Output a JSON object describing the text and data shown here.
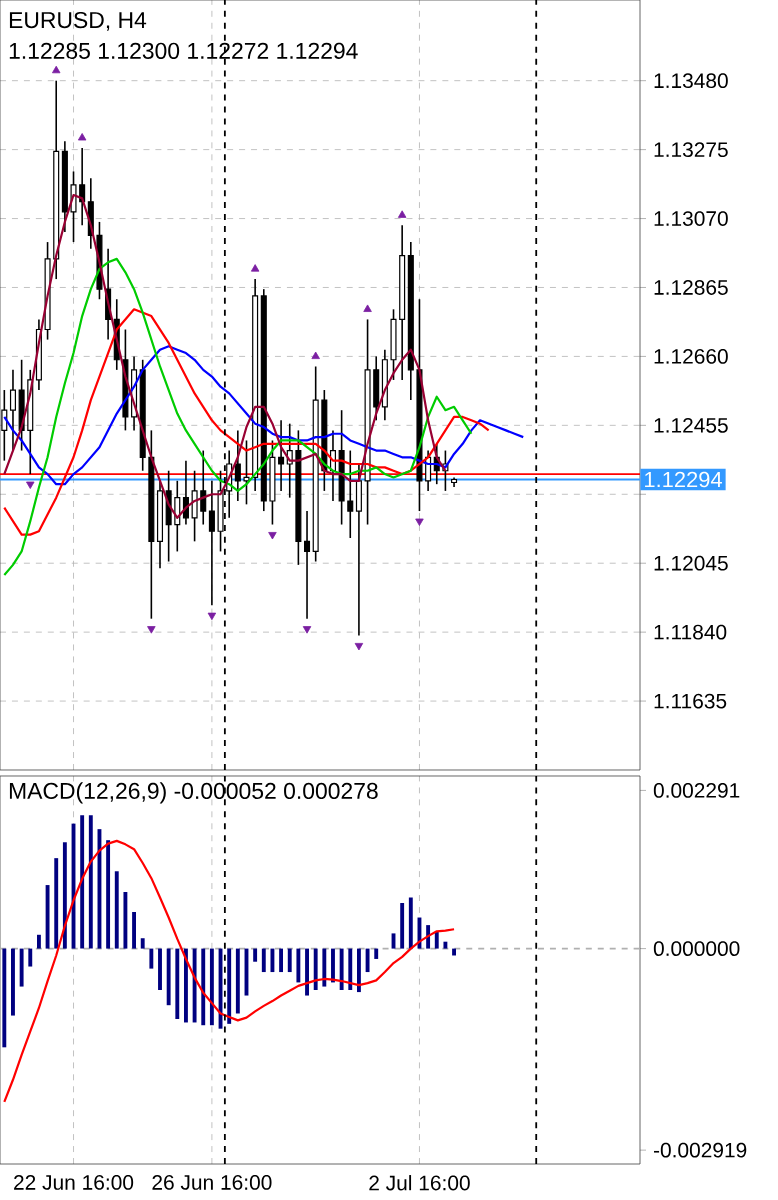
{
  "chart_data": [
    {
      "type": "candlestick",
      "title": "EURUSD, H4",
      "subtitle": "1.12285 1.12300 1.12272 1.12294",
      "categories": [
        null,
        null,
        null,
        null,
        null,
        null,
        null,
        null,
        null,
        null,
        null,
        null,
        null,
        null,
        null,
        null,
        null,
        null,
        null,
        null,
        null,
        null,
        null,
        null,
        null,
        null,
        null,
        null,
        null,
        null,
        null,
        null,
        null,
        null,
        null,
        null,
        null,
        null,
        null,
        null,
        null,
        null,
        null,
        null,
        null,
        null,
        null,
        null,
        null,
        null,
        null,
        null,
        null,
        null,
        null,
        null,
        null,
        null,
        null,
        null,
        null,
        null,
        null,
        null,
        null,
        null,
        null,
        null,
        null,
        null,
        null,
        null,
        null,
        null
      ],
      "ohlc": [
        [
          1.1244,
          1.1256,
          1.1235,
          1.125
        ],
        [
          1.125,
          1.1262,
          1.1238,
          1.1256
        ],
        [
          1.1256,
          1.1265,
          1.1238,
          1.1244
        ],
        [
          1.1244,
          1.1262,
          1.1231,
          1.1259
        ],
        [
          1.1259,
          1.1277,
          1.1256,
          1.1274
        ],
        [
          1.1274,
          1.13,
          1.1271,
          1.1295
        ],
        [
          1.1295,
          1.1348,
          1.1289,
          1.1327
        ],
        [
          1.1327,
          1.133,
          1.1303,
          1.1309
        ],
        [
          1.1309,
          1.1321,
          1.13,
          1.1317
        ],
        [
          1.1317,
          1.1328,
          1.1305,
          1.1312
        ],
        [
          1.1312,
          1.1319,
          1.1298,
          1.1302
        ],
        [
          1.1302,
          1.1306,
          1.1283,
          1.1286
        ],
        [
          1.1286,
          1.1298,
          1.1271,
          1.1277
        ],
        [
          1.1277,
          1.1283,
          1.1262,
          1.1265
        ],
        [
          1.1265,
          1.1274,
          1.1244,
          1.1248
        ],
        [
          1.1248,
          1.1266,
          1.1244,
          1.1262
        ],
        [
          1.1262,
          1.1265,
          1.1232,
          1.1236
        ],
        [
          1.1236,
          1.1244,
          1.1188,
          1.1211
        ],
        [
          1.1211,
          1.1229,
          1.1203,
          1.1226
        ],
        [
          1.1226,
          1.1232,
          1.1205,
          1.1216
        ],
        [
          1.1216,
          1.1229,
          1.1208,
          1.1224
        ],
        [
          1.1224,
          1.1235,
          1.1216,
          1.1218
        ],
        [
          1.1218,
          1.1232,
          1.1211,
          1.1226
        ],
        [
          1.1226,
          1.1238,
          1.1216,
          1.122
        ],
        [
          1.122,
          1.1229,
          1.1192,
          1.1214
        ],
        [
          1.1214,
          1.1232,
          1.1208,
          1.1226
        ],
        [
          1.1226,
          1.1238,
          1.1218,
          1.1234
        ],
        [
          1.1234,
          1.1244,
          1.1223,
          1.1229
        ],
        [
          1.1229,
          1.1241,
          1.1222,
          1.123
        ],
        [
          1.123,
          1.1289,
          1.1226,
          1.1284
        ],
        [
          1.1284,
          1.1286,
          1.122,
          1.1223
        ],
        [
          1.1223,
          1.1241,
          1.1216,
          1.1236
        ],
        [
          1.1236,
          1.1247,
          1.1226,
          1.1234
        ],
        [
          1.1234,
          1.1246,
          1.1224,
          1.1238
        ],
        [
          1.1238,
          1.1244,
          1.1204,
          1.1211
        ],
        [
          1.1211,
          1.122,
          1.1188,
          1.1208
        ],
        [
          1.1208,
          1.1263,
          1.1205,
          1.1253
        ],
        [
          1.1253,
          1.1256,
          1.1226,
          1.1232
        ],
        [
          1.1232,
          1.1244,
          1.1223,
          1.1238
        ],
        [
          1.1238,
          1.125,
          1.1216,
          1.1223
        ],
        [
          1.1223,
          1.1238,
          1.1212,
          1.122
        ],
        [
          1.122,
          1.1234,
          1.1183,
          1.1229
        ],
        [
          1.1229,
          1.1277,
          1.1216,
          1.1262
        ],
        [
          1.1262,
          1.1266,
          1.1247,
          1.1251
        ],
        [
          1.1251,
          1.1268,
          1.1247,
          1.1265
        ],
        [
          1.1265,
          1.128,
          1.1259,
          1.1277
        ],
        [
          1.1277,
          1.1305,
          1.1259,
          1.1296
        ],
        [
          1.1296,
          1.13,
          1.1253,
          1.1262
        ],
        [
          1.1262,
          1.1283,
          1.122,
          1.1229
        ],
        [
          1.1229,
          1.1238,
          1.1226,
          1.1236
        ],
        [
          1.1236,
          1.124,
          1.1228,
          1.1232
        ],
        [
          1.1232,
          1.1238,
          1.1226,
          1.1234
        ],
        [
          1.12285,
          1.123,
          1.12272,
          1.12294
        ],
        null,
        null,
        null,
        null,
        null,
        null,
        null,
        null,
        null,
        null,
        null,
        null,
        null,
        null,
        null,
        null,
        null,
        null,
        null,
        null,
        null
      ],
      "series": [
        {
          "type": "line",
          "color": "#0000ff",
          "values": [
            1.1248,
            1.1244,
            1.1241,
            1.1237,
            1.1233,
            1.1231,
            1.1228,
            1.1228,
            1.1231,
            1.1233,
            1.1236,
            1.1239,
            1.1244,
            1.1249,
            1.1253,
            1.1257,
            1.1262,
            1.1265,
            1.1268,
            1.1269,
            1.1268,
            1.1267,
            1.1265,
            1.1262,
            1.126,
            1.1257,
            1.1255,
            1.1252,
            1.1249,
            1.1246,
            1.1245,
            1.1243,
            1.1242,
            1.1242,
            1.1241,
            1.1241,
            1.1242,
            1.1242,
            1.1243,
            1.1243,
            1.1241,
            1.124,
            1.1239,
            1.1238,
            1.1238,
            1.1237,
            1.1236,
            1.1236,
            1.1235,
            1.1234,
            1.1234,
            1.1233,
            1.1237,
            1.124,
            1.1244,
            1.1247,
            1.1246,
            1.1245,
            1.1244,
            1.1243,
            1.1242,
            null,
            null,
            null,
            null,
            null,
            null,
            null,
            null,
            null,
            null,
            null,
            null,
            null
          ]
        },
        {
          "type": "line",
          "color": "#ff0000",
          "values": [
            1.1221,
            1.1217,
            1.1213,
            1.1213,
            1.1214,
            1.1219,
            1.1224,
            1.123,
            1.1236,
            1.1244,
            1.1253,
            1.126,
            1.1267,
            1.1274,
            1.1277,
            1.128,
            1.1279,
            1.1278,
            1.1274,
            1.127,
            1.1265,
            1.126,
            1.1255,
            1.1251,
            1.1247,
            1.1244,
            1.1242,
            1.124,
            1.1238,
            1.1239,
            1.124,
            1.124,
            1.124,
            1.124,
            1.124,
            1.124,
            1.124,
            1.1238,
            1.1235,
            1.1235,
            1.1234,
            1.1234,
            1.1234,
            1.1233,
            1.1233,
            1.1232,
            1.1231,
            1.1232,
            1.1234,
            1.1236,
            1.124,
            1.1244,
            1.1248,
            1.1248,
            1.1247,
            1.1246,
            1.1244,
            null,
            null,
            null,
            null,
            null,
            null,
            null,
            null,
            null,
            null,
            null,
            null,
            null,
            null,
            null,
            null,
            null
          ]
        },
        {
          "type": "line",
          "color": "#00cc00",
          "values": [
            1.1201,
            1.1204,
            1.1208,
            1.1217,
            1.1227,
            1.1236,
            1.1248,
            1.1258,
            1.1267,
            1.1278,
            1.1286,
            1.1292,
            1.1294,
            1.1295,
            1.1291,
            1.1286,
            1.1279,
            1.1271,
            1.1263,
            1.1256,
            1.1249,
            1.1244,
            1.124,
            1.1236,
            1.1232,
            1.1229,
            1.1228,
            1.1226,
            1.1228,
            1.1231,
            1.1234,
            1.1238,
            1.1241,
            1.1241,
            1.1241,
            1.1239,
            1.1237,
            1.1234,
            1.1232,
            1.1231,
            1.1231,
            1.1232,
            1.1232,
            1.1233,
            1.1231,
            1.123,
            1.1231,
            1.1232,
            1.1239,
            1.1248,
            1.1254,
            1.125,
            1.1251,
            1.1247,
            1.1243,
            null,
            null,
            null,
            null,
            null,
            null,
            null,
            null,
            null,
            null,
            null,
            null,
            null,
            null,
            null,
            null,
            null,
            null,
            null
          ]
        },
        {
          "type": "line",
          "color": "#990033",
          "values": [
            1.1231,
            1.1238,
            1.1245,
            1.1255,
            1.127,
            1.1284,
            1.1296,
            1.1306,
            1.1314,
            1.1313,
            1.1305,
            1.1294,
            1.1282,
            1.1271,
            1.126,
            1.1252,
            1.1244,
            1.1236,
            1.1229,
            1.1222,
            1.1218,
            1.1221,
            1.1223,
            1.1224,
            1.1225,
            1.1225,
            1.123,
            1.1236,
            1.1245,
            1.1251,
            1.1251,
            1.1246,
            1.1239,
            1.1235,
            1.1235,
            1.1236,
            1.1237,
            1.1232,
            1.1231,
            1.1231,
            1.1229,
            1.1229,
            1.124,
            1.1249,
            1.1256,
            1.1261,
            1.1265,
            1.1268,
            1.1262,
            1.1247,
            1.1236,
            1.1232,
            null,
            null,
            null,
            null,
            null,
            null,
            null,
            null,
            null,
            null,
            null,
            null,
            null,
            null,
            null,
            null,
            null,
            null,
            null,
            null,
            null,
            null
          ]
        },
        {
          "type": "scatter",
          "color": "#7b1fa2",
          "marker": "triangle",
          "values": [
            null,
            null,
            null,
            null,
            null,
            null,
            1.1351,
            null,
            null,
            1.1331,
            null,
            null,
            null,
            null,
            null,
            null,
            null,
            null,
            null,
            null,
            null,
            null,
            null,
            null,
            null,
            null,
            null,
            null,
            null,
            1.1292,
            null,
            null,
            null,
            null,
            null,
            null,
            1.1266,
            null,
            null,
            null,
            null,
            null,
            1.128,
            null,
            null,
            null,
            1.1308,
            null,
            null,
            null,
            null,
            null,
            null,
            null,
            null,
            null,
            null,
            null,
            null,
            null,
            null,
            null,
            null,
            null,
            null,
            null,
            null,
            null,
            null,
            null,
            null,
            null,
            null,
            null
          ]
        },
        {
          "type": "scatter",
          "color": "#7b1fa2",
          "marker": "triangle",
          "values": [
            null,
            null,
            null,
            1.1228,
            null,
            null,
            null,
            null,
            null,
            null,
            null,
            null,
            null,
            null,
            null,
            null,
            null,
            1.1185,
            null,
            null,
            null,
            null,
            null,
            null,
            1.1189,
            null,
            null,
            null,
            null,
            null,
            null,
            1.1213,
            null,
            null,
            null,
            1.1185,
            null,
            null,
            null,
            null,
            null,
            1.118,
            null,
            null,
            null,
            null,
            null,
            null,
            1.1217,
            null,
            null,
            null,
            null,
            null,
            null,
            null,
            null,
            null,
            null,
            null,
            null,
            null,
            null,
            null,
            null,
            null,
            null,
            null,
            null,
            null,
            null,
            null,
            null,
            null
          ]
        }
      ],
      "ylim": [
        1.1143,
        1.1372
      ],
      "yticks": [
        {
          "value": 1.1348,
          "label": "1.13480"
        },
        1.13275,
        {
          "value": 1.1307,
          "label": "1.13070"
        },
        1.12865,
        {
          "value": 1.1266,
          "label": "1.12660"
        },
        1.12455,
        {
          "value": 1.1225,
          "label": null
        },
        1.12045,
        {
          "value": 1.1184,
          "label": "1.11840"
        },
        1.11635
      ],
      "ref_lines": [
        {
          "axis": "y",
          "value": 1.1231,
          "color": "#ff0000"
        },
        {
          "axis": "y",
          "value": 1.12294,
          "label": "1.12294",
          "color": "#3399ff"
        }
      ],
      "grid": true,
      "tick_labels": "y"
    },
    {
      "type": "bar",
      "title": "MACD(12,26,9) -0.000052 0.000278",
      "categories": [
        null,
        null,
        null,
        null,
        null,
        null,
        null,
        null,
        "22 Jun 16:00",
        null,
        null,
        null,
        null,
        null,
        null,
        null,
        null,
        null,
        null,
        null,
        null,
        null,
        null,
        null,
        "26 Jun 16:00",
        null,
        null,
        null,
        null,
        null,
        null,
        null,
        null,
        null,
        null,
        null,
        null,
        null,
        null,
        null,
        null,
        null,
        null,
        null,
        null,
        null,
        null,
        null,
        "2 Jul 16:00",
        null,
        null,
        null,
        null,
        null,
        null,
        null,
        null,
        null,
        null,
        null,
        null,
        null,
        null,
        null,
        null,
        null,
        null,
        null,
        null,
        null,
        null,
        null,
        null,
        null
      ],
      "series": [
        {
          "type": "bar",
          "color": "#000080",
          "values": [
            -0.00143,
            -0.00097,
            -0.00055,
            -0.00026,
            0.0002,
            0.00092,
            0.00131,
            0.00154,
            0.00181,
            0.00193,
            0.00193,
            0.00173,
            0.00157,
            0.00112,
            0.00082,
            0.00053,
            0.00015,
            -0.00029,
            -0.0006,
            -0.00082,
            -0.00102,
            -0.00107,
            -0.00107,
            -0.00111,
            -0.00111,
            -0.00116,
            -0.00109,
            -0.00094,
            -0.00068,
            -0.00019,
            -0.00034,
            -0.00034,
            -0.00034,
            -0.00034,
            -0.00049,
            -0.00068,
            -0.0006,
            -0.00055,
            -0.00049,
            -0.0006,
            -0.0006,
            -0.00063,
            -0.00034,
            -0.00015,
            0,
            0.00022,
            0.00066,
            0.00074,
            0.00045,
            0.00034,
            0.00024,
            0.0001,
            -0.0001,
            null,
            null,
            null,
            null,
            null,
            null,
            null,
            null,
            null,
            null,
            null,
            null,
            null,
            null,
            null,
            null,
            null,
            null,
            null,
            null,
            null
          ]
        },
        {
          "type": "line",
          "color": "#ff0000",
          "values": [
            -0.00222,
            -0.0019,
            -0.00154,
            -0.0012,
            -0.00086,
            -0.00047,
            -0.0001,
            0.00033,
            0.0007,
            0.00101,
            0.00126,
            0.00142,
            0.00152,
            0.00156,
            0.00151,
            0.00144,
            0.00124,
            0.00102,
            0.00074,
            0.00045,
            0.00014,
            -0.00015,
            -0.00042,
            -0.00064,
            -0.00079,
            -0.00094,
            -0.00099,
            -0.00104,
            -0.001,
            -0.00091,
            -0.00083,
            -0.00076,
            -0.00068,
            -0.00061,
            -0.00054,
            -0.0005,
            -0.00046,
            -0.00044,
            -0.00045,
            -0.00047,
            -0.0005,
            -0.00053,
            -0.0005,
            -0.00046,
            -0.00034,
            -0.00021,
            -0.00012,
            0,
            0.0001,
            0.00018,
            0.00025,
            0.00026,
            0.00028,
            null,
            null,
            null,
            null,
            null,
            null,
            null,
            null,
            null,
            null,
            null,
            null,
            null,
            null,
            null,
            null,
            null,
            null,
            null,
            null,
            null
          ]
        }
      ],
      "ylim": [
        -0.00312,
        0.0025
      ],
      "yticks": [
        0.002291,
        {
          "value": 0,
          "label": "0.000000"
        },
        -0.002919
      ],
      "ref_lines": [
        {
          "axis": "y",
          "value": 0,
          "color": "#b0b0b0",
          "line_style": "dashed"
        }
      ],
      "grid": "x"
    }
  ]
}
